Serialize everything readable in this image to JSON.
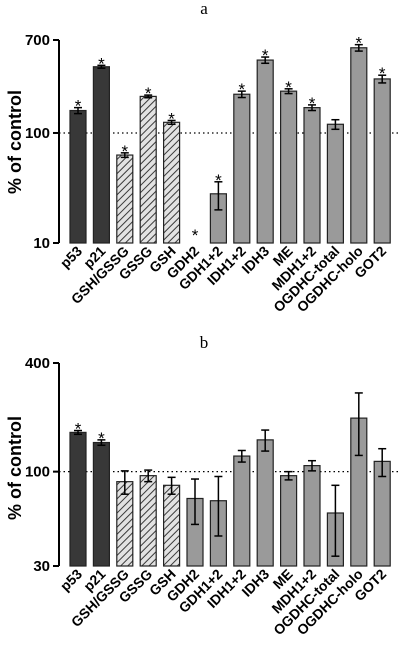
{
  "chart_data": [
    {
      "panel": "a",
      "type": "bar",
      "ylabel": "% of control",
      "yscale": "log",
      "ylim": [
        10,
        700
      ],
      "yticks": [
        "10",
        "100",
        "700"
      ],
      "reference_line": 100,
      "categories": [
        "p53",
        "p21",
        "GSH/GSSG",
        "GSSG",
        "GSH",
        "GDH2",
        "GDH1+2",
        "IDH1+2",
        "IDH3",
        "ME",
        "MDH1+2",
        "OGDHC-total",
        "OGDHC-holo",
        "GOT2"
      ],
      "values": [
        160,
        400,
        63,
        215,
        125,
        null,
        28,
        225,
        460,
        240,
        170,
        120,
        595,
        310
      ],
      "errors": [
        10,
        12,
        3,
        6,
        5,
        null,
        8,
        15,
        30,
        12,
        10,
        12,
        40,
        25
      ],
      "significant": [
        "*",
        "*",
        "*",
        "*",
        "*",
        "*",
        "*",
        "*",
        "*",
        "*",
        "*",
        "",
        "*",
        "*"
      ],
      "bar_style": [
        "dark",
        "dark",
        "hatched",
        "hatched",
        "hatched",
        "gray",
        "gray",
        "gray",
        "gray",
        "gray",
        "gray",
        "gray",
        "gray",
        "gray"
      ]
    },
    {
      "panel": "b",
      "type": "bar",
      "ylabel": "% of control",
      "yscale": "log",
      "ylim": [
        30,
        400
      ],
      "yticks": [
        "30",
        "100",
        "400"
      ],
      "reference_line": 100,
      "categories": [
        "p53",
        "p21",
        "GSH/GSSG",
        "GSSG",
        "GSH",
        "GDH2",
        "GDH1+2",
        "IDH1+2",
        "IDH3",
        "ME",
        "MDH1+2",
        "OGDHC-total",
        "OGDHC-holo",
        "GOT2"
      ],
      "values": [
        165,
        145,
        88,
        95,
        84,
        71,
        69,
        122,
        150,
        95,
        108,
        59,
        198,
        114
      ],
      "errors": [
        4,
        5,
        13,
        7,
        9,
        20,
        25,
        9,
        20,
        5,
        7,
        25,
        75,
        20
      ],
      "significant": [
        "*",
        "*",
        "",
        "",
        "",
        "",
        "",
        "",
        "",
        "",
        "",
        "",
        "",
        ""
      ],
      "bar_style": [
        "dark",
        "dark",
        "hatched",
        "hatched",
        "hatched",
        "gray",
        "gray",
        "gray",
        "gray",
        "gray",
        "gray",
        "gray",
        "gray",
        "gray"
      ]
    }
  ],
  "colors": {
    "dark": "#383838",
    "gray": "#9a9a9a",
    "hatch_bg": "#e2e2e2",
    "hatch_line": "#3a3a3a"
  }
}
